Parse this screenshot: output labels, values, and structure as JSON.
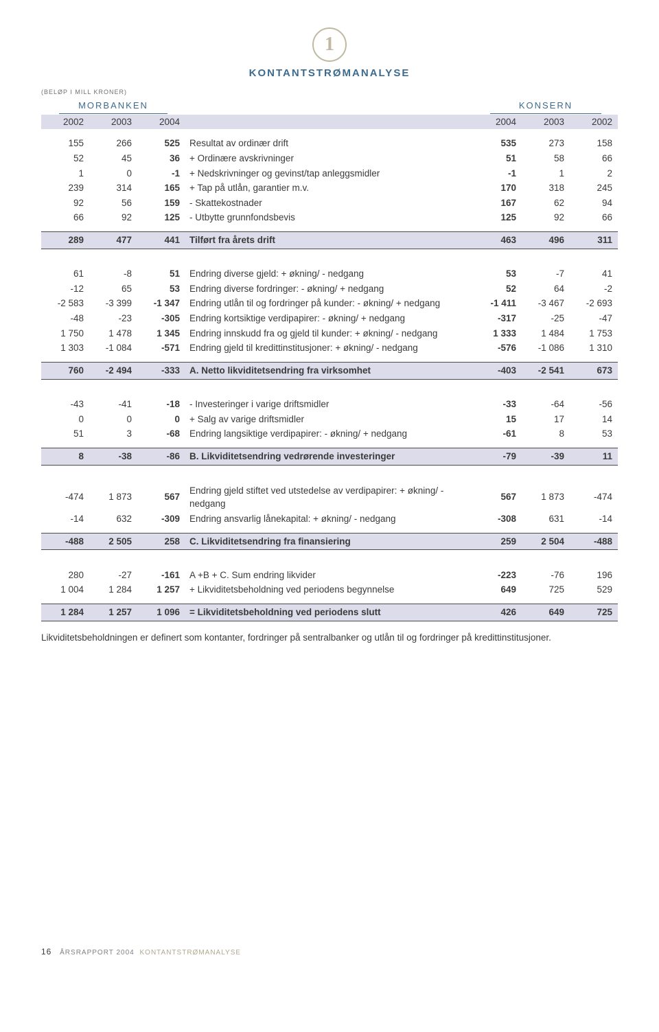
{
  "logo_digit": "1",
  "title": "KONTANTSTRØMANALYSE",
  "unit_note": "(BELØP I MILL KRONER)",
  "group_left": "MORBANKEN",
  "group_right": "KONSERN",
  "years": {
    "c1": "2002",
    "c2": "2003",
    "c3": "2004",
    "c4": "2004",
    "c5": "2003",
    "c6": "2002"
  },
  "sections": [
    {
      "rows": [
        {
          "a": [
            "155",
            "266",
            "525"
          ],
          "d": "Resultat av ordinær drift",
          "b": [
            "535",
            "273",
            "158"
          ]
        },
        {
          "a": [
            "52",
            "45",
            "36"
          ],
          "d": "+ Ordinære avskrivninger",
          "b": [
            "51",
            "58",
            "66"
          ]
        },
        {
          "a": [
            "1",
            "0",
            "-1"
          ],
          "d": "+ Nedskrivninger og gevinst/tap anleggsmidler",
          "b": [
            "-1",
            "1",
            "2"
          ]
        },
        {
          "a": [
            "239",
            "314",
            "165"
          ],
          "d": "+ Tap på utlån, garantier m.v.",
          "b": [
            "170",
            "318",
            "245"
          ]
        },
        {
          "a": [
            "92",
            "56",
            "159"
          ],
          "d": "- Skattekostnader",
          "b": [
            "167",
            "62",
            "94"
          ]
        },
        {
          "a": [
            "66",
            "92",
            "125"
          ],
          "d": "- Utbytte grunnfondsbevis",
          "b": [
            "125",
            "92",
            "66"
          ]
        }
      ],
      "summary": {
        "a": [
          "289",
          "477",
          "441"
        ],
        "d": "Tilført fra årets drift",
        "b": [
          "463",
          "496",
          "311"
        ]
      }
    },
    {
      "rows": [
        {
          "a": [
            "61",
            "-8",
            "51"
          ],
          "d": "Endring diverse gjeld: + økning/ - nedgang",
          "b": [
            "53",
            "-7",
            "41"
          ]
        },
        {
          "a": [
            "-12",
            "65",
            "53"
          ],
          "d": "Endring diverse fordringer: - økning/ + nedgang",
          "b": [
            "52",
            "64",
            "-2"
          ]
        },
        {
          "a": [
            "-2 583",
            "-3 399",
            "-1 347"
          ],
          "d": "Endring  utlån til og fordringer på kunder: - økning/ + nedgang",
          "b": [
            "-1 411",
            "-3 467",
            "-2 693"
          ]
        },
        {
          "a": [
            "-48",
            "-23",
            "-305"
          ],
          "d": "Endring kortsiktige verdipapirer: - økning/ + nedgang",
          "b": [
            "-317",
            "-25",
            "-47"
          ]
        },
        {
          "a": [
            "1 750",
            "1 478",
            "1 345"
          ],
          "d": "Endring innskudd fra og gjeld til kunder: + økning/ - nedgang",
          "b": [
            "1 333",
            "1 484",
            "1 753"
          ]
        },
        {
          "a": [
            "1 303",
            "-1 084",
            "-571"
          ],
          "d": "Endring gjeld til kredittinstitusjoner: + økning/ - nedgang",
          "b": [
            "-576",
            "-1 086",
            "1 310"
          ]
        }
      ],
      "summary": {
        "a": [
          "760",
          "-2 494",
          "-333"
        ],
        "d": "A. Netto likviditetsendring fra virksomhet",
        "b": [
          "-403",
          "-2 541",
          "673"
        ]
      }
    },
    {
      "rows": [
        {
          "a": [
            "-43",
            "-41",
            "-18"
          ],
          "d": "- Investeringer i varige driftsmidler",
          "b": [
            "-33",
            "-64",
            "-56"
          ]
        },
        {
          "a": [
            "0",
            "0",
            "0"
          ],
          "d": "+ Salg av varige driftsmidler",
          "b": [
            "15",
            "17",
            "14"
          ]
        },
        {
          "a": [
            "51",
            "3",
            "-68"
          ],
          "d": "Endring langsiktige verdipapirer: - økning/ + nedgang",
          "b": [
            "-61",
            "8",
            "53"
          ]
        }
      ],
      "summary": {
        "a": [
          "8",
          "-38",
          "-86"
        ],
        "d": "B. Likviditetsendring vedrørende investeringer",
        "b": [
          "-79",
          "-39",
          "11"
        ]
      }
    },
    {
      "rows": [
        {
          "a": [
            "-474",
            "1 873",
            "567"
          ],
          "d": "Endring gjeld stiftet ved utstedelse av verdipapirer: + økning/ - nedgang",
          "b": [
            "567",
            "1 873",
            "-474"
          ]
        },
        {
          "a": [
            "-14",
            "632",
            "-309"
          ],
          "d": "Endring ansvarlig lånekapital: + økning/ - nedgang",
          "b": [
            "-308",
            "631",
            "-14"
          ]
        }
      ],
      "summary": {
        "a": [
          "-488",
          "2 505",
          "258"
        ],
        "d": "C. Likviditetsendring fra finansiering",
        "b": [
          "259",
          "2 504",
          "-488"
        ]
      }
    },
    {
      "rows": [
        {
          "a": [
            "280",
            "-27",
            "-161"
          ],
          "d": "A +B + C. Sum endring likvider",
          "b": [
            "-223",
            "-76",
            "196"
          ]
        },
        {
          "a": [
            "1 004",
            "1 284",
            "1 257"
          ],
          "d": "+ Likviditetsbeholdning ved periodens begynnelse",
          "b": [
            "649",
            "725",
            "529"
          ]
        }
      ],
      "summary": {
        "a": [
          "1 284",
          "1 257",
          "1 096"
        ],
        "d": "= Likviditetsbeholdning ved periodens slutt",
        "b": [
          "426",
          "649",
          "725"
        ]
      }
    }
  ],
  "footnote": "Likviditetsbeholdningen er definert som kontanter, fordringer på sentralbanker og utlån til og fordringer på kredittinstitusjoner.",
  "footer": {
    "page": "16",
    "report": "ÅRSRAPPORT 2004",
    "section": "KONTANTSTRØMANALYSE"
  },
  "colors": {
    "title_color": "#3c6b8f",
    "band_color": "#dcdceb",
    "text_color": "#3a3a3a",
    "logo_color": "#c0b8a0",
    "rule_color": "#4a4a4a"
  }
}
